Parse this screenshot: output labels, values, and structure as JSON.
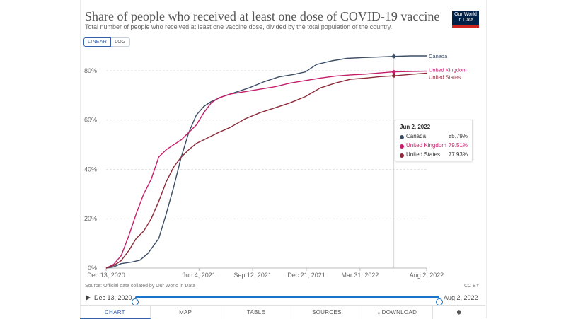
{
  "header": {
    "title": "Share of people who received at least one dose of COVID-19 vaccine",
    "subtitle": "Total number of people who received at least one vaccine dose, divided by the total population of the country.",
    "logo_line1": "Our World",
    "logo_line2": "in Data"
  },
  "scale": {
    "linear_label": "LINEAR",
    "log_label": "LOG",
    "selected": "linear"
  },
  "colors": {
    "canada": "#3c4e66",
    "uk": "#c51d6a",
    "us": "#8c2a3a",
    "accent": "#3360a9",
    "timeline": "#1a73c9"
  },
  "chart_data": {
    "type": "line",
    "title": "Share of people who received at least one dose of COVID-19 vaccine",
    "subtitle": "Total number of people who received at least one vaccine dose, divided by the total population of the country.",
    "y_unit": "%",
    "ylim": [
      0,
      86
    ],
    "yticks": [
      "0%",
      "20%",
      "40%",
      "60%",
      "80%"
    ],
    "ytick_values": [
      0,
      20,
      40,
      60,
      80
    ],
    "xlim": [
      "2020-12-13",
      "2022-08-02"
    ],
    "xticks": [
      "Dec 13, 2020",
      "Jun 4, 2021",
      "Sep 12, 2021",
      "Dec 21, 2021",
      "Mar 31, 2022",
      "Aug 2, 2022"
    ],
    "xtick_dates": [
      "2020-12-13",
      "2021-06-04",
      "2021-09-12",
      "2021-12-21",
      "2022-03-31",
      "2022-08-02"
    ],
    "grid": "horizontal dashed",
    "hover_date": "2022-06-02",
    "series": [
      {
        "name": "Canada",
        "key": "canada",
        "points": [
          [
            "2020-12-13",
            0
          ],
          [
            "2020-12-27",
            0.5
          ],
          [
            "2021-01-10",
            1.8
          ],
          [
            "2021-01-31",
            2.5
          ],
          [
            "2021-02-14",
            3.2
          ],
          [
            "2021-03-01",
            6
          ],
          [
            "2021-03-21",
            12
          ],
          [
            "2021-04-04",
            22
          ],
          [
            "2021-04-18",
            33
          ],
          [
            "2021-05-02",
            45
          ],
          [
            "2021-05-16",
            55
          ],
          [
            "2021-05-30",
            62
          ],
          [
            "2021-06-13",
            65.5
          ],
          [
            "2021-06-27",
            67.5
          ],
          [
            "2021-07-18",
            69.5
          ],
          [
            "2021-08-08",
            71
          ],
          [
            "2021-09-05",
            73
          ],
          [
            "2021-10-03",
            75.5
          ],
          [
            "2021-10-31",
            77.5
          ],
          [
            "2021-11-28",
            78.5
          ],
          [
            "2021-12-19",
            79.5
          ],
          [
            "2022-01-09",
            82.5
          ],
          [
            "2022-02-06",
            84
          ],
          [
            "2022-03-06",
            85
          ],
          [
            "2022-04-03",
            85.3
          ],
          [
            "2022-05-01",
            85.5
          ],
          [
            "2022-06-02",
            85.79
          ],
          [
            "2022-07-03",
            86
          ],
          [
            "2022-08-02",
            86
          ]
        ]
      },
      {
        "name": "United Kingdom",
        "key": "uk",
        "points": [
          [
            "2020-12-13",
            0
          ],
          [
            "2020-12-27",
            1.5
          ],
          [
            "2021-01-10",
            5
          ],
          [
            "2021-01-24",
            13
          ],
          [
            "2021-02-07",
            22
          ],
          [
            "2021-02-21",
            30
          ],
          [
            "2021-03-07",
            36
          ],
          [
            "2021-03-21",
            45
          ],
          [
            "2021-04-04",
            48
          ],
          [
            "2021-04-18",
            50
          ],
          [
            "2021-05-02",
            52
          ],
          [
            "2021-05-16",
            55
          ],
          [
            "2021-05-30",
            58
          ],
          [
            "2021-06-13",
            63
          ],
          [
            "2021-06-27",
            67
          ],
          [
            "2021-07-11",
            69
          ],
          [
            "2021-08-01",
            70.5
          ],
          [
            "2021-08-29",
            71.5
          ],
          [
            "2021-09-26",
            72.5
          ],
          [
            "2021-10-24",
            73.5
          ],
          [
            "2021-11-21",
            75
          ],
          [
            "2021-12-19",
            76
          ],
          [
            "2022-01-16",
            77
          ],
          [
            "2022-02-13",
            77.8
          ],
          [
            "2022-03-13",
            78.3
          ],
          [
            "2022-04-10",
            78.6
          ],
          [
            "2022-05-08",
            79.1
          ],
          [
            "2022-06-02",
            79.51
          ],
          [
            "2022-07-03",
            79.7
          ],
          [
            "2022-08-02",
            79.8
          ]
        ]
      },
      {
        "name": "United States",
        "key": "us",
        "points": [
          [
            "2020-12-13",
            0
          ],
          [
            "2020-12-27",
            1
          ],
          [
            "2021-01-10",
            3
          ],
          [
            "2021-01-24",
            7
          ],
          [
            "2021-02-07",
            12
          ],
          [
            "2021-02-21",
            15
          ],
          [
            "2021-03-07",
            20
          ],
          [
            "2021-03-21",
            27
          ],
          [
            "2021-04-04",
            35
          ],
          [
            "2021-04-18",
            41
          ],
          [
            "2021-05-02",
            45
          ],
          [
            "2021-05-16",
            48
          ],
          [
            "2021-05-30",
            50.5
          ],
          [
            "2021-06-13",
            52
          ],
          [
            "2021-06-27",
            53.5
          ],
          [
            "2021-07-11",
            55
          ],
          [
            "2021-08-01",
            57
          ],
          [
            "2021-08-29",
            60.5
          ],
          [
            "2021-09-26",
            63
          ],
          [
            "2021-10-24",
            65
          ],
          [
            "2021-11-21",
            67
          ],
          [
            "2021-12-19",
            69.5
          ],
          [
            "2022-01-16",
            73
          ],
          [
            "2022-02-13",
            75
          ],
          [
            "2022-03-13",
            76.5
          ],
          [
            "2022-04-10",
            77
          ],
          [
            "2022-05-08",
            77.6
          ],
          [
            "2022-06-02",
            77.93
          ],
          [
            "2022-07-03",
            78.5
          ],
          [
            "2022-08-02",
            79
          ]
        ]
      }
    ]
  },
  "tooltip": {
    "date": "Jun 2, 2022",
    "rows": [
      {
        "name": "Canada",
        "value": "85.79%"
      },
      {
        "name": "United Kingdom",
        "value": "79.51%"
      },
      {
        "name": "United States",
        "value": "77.93%"
      }
    ]
  },
  "footer": {
    "source": "Source: Official data collated by Our World in Data",
    "license": "CC BY"
  },
  "timeline": {
    "start": "Dec 13, 2020",
    "end": "Aug 2, 2022",
    "start_fraction": 0,
    "end_fraction": 1
  },
  "tabs": [
    {
      "label": "CHART",
      "active": true
    },
    {
      "label": "MAP",
      "active": false
    },
    {
      "label": "TABLE",
      "active": false
    },
    {
      "label": "SOURCES",
      "active": false
    },
    {
      "label": "DOWNLOAD",
      "active": false
    },
    {
      "label": "",
      "active": false
    }
  ]
}
